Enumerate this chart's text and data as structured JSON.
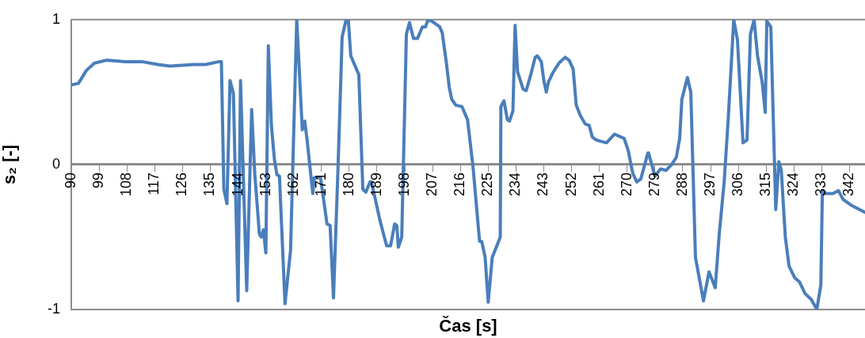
{
  "chart_data": {
    "type": "line",
    "xlabel": "Čas [s]",
    "ylabel": "s₂ [-]",
    "marker": "none",
    "xlim": [
      90,
      347
    ],
    "xticks": [
      90,
      99,
      108,
      117,
      126,
      135,
      144,
      153,
      162,
      171,
      180,
      189,
      198,
      207,
      216,
      225,
      234,
      243,
      252,
      261,
      270,
      279,
      288,
      297,
      306,
      315,
      324,
      333,
      342
    ],
    "ylim": [
      -1,
      1
    ],
    "yticks": [
      -1,
      0,
      1
    ],
    "series": [
      {
        "color": "#4a7ebb",
        "x": [
          90,
          92.3,
          94.9,
          97.5,
          101.3,
          107.7,
          112.9,
          118.0,
          121.9,
          129.6,
          133.5,
          137.8,
          138.6,
          139.4,
          140.4,
          141.4,
          142.5,
          144.0,
          144.8,
          146.8,
          148.4,
          149.4,
          150.9,
          151.5,
          152.2,
          153.0,
          153.8,
          154.8,
          155.8,
          156.6,
          157.4,
          159.2,
          161.0,
          163.0,
          164.8,
          165.6,
          166.4,
          168.2,
          168.7,
          170.7,
          172.8,
          173.8,
          174.9,
          176.4,
          177.7,
          179.0,
          179.7,
          180.5,
          183.1,
          184.4,
          185.4,
          186.7,
          187.2,
          190.0,
          192.1,
          193.4,
          194.7,
          195.4,
          195.9,
          197.0,
          198.5,
          199.5,
          200.8,
          202.1,
          202.9,
          203.7,
          204.7,
          205.5,
          206.7,
          209.3,
          210.1,
          211.4,
          212.4,
          213.2,
          214.5,
          216.5,
          218.3,
          220.1,
          222.2,
          222.9,
          224.0,
          225.0,
          226.3,
          227.8,
          228.9,
          229.1,
          230.1,
          231.2,
          231.9,
          233.0,
          233.7,
          234.5,
          236.3,
          237.3,
          238.9,
          240.2,
          240.9,
          242.2,
          243.0,
          243.8,
          244.5,
          246.1,
          247.9,
          249.9,
          251.2,
          252.5,
          253.5,
          254.8,
          256.4,
          257.7,
          258.7,
          260.0,
          261.5,
          263.3,
          265.9,
          269.0,
          270.3,
          271.8,
          273.1,
          274.4,
          276.7,
          276.9,
          279.0,
          280.8,
          282.6,
          284.4,
          285.9,
          287.0,
          287.7,
          289.5,
          290.6,
          292.1,
          294.7,
          296.5,
          298.5,
          299.8,
          301.4,
          302.7,
          304.5,
          305.7,
          307.5,
          308.8,
          309.9,
          311.1,
          312.2,
          313.7,
          314.7,
          315.2,
          316.5,
          318.1,
          319.1,
          319.9,
          321.2,
          322.4,
          324.2,
          325.8,
          327.6,
          329.6,
          331.4,
          332.7,
          333.2,
          334.5,
          336.6,
          338.4,
          339.9,
          342.5,
          347
        ],
        "values": [
          0.55,
          0.56,
          0.65,
          0.7,
          0.72,
          0.71,
          0.71,
          0.69,
          0.68,
          0.69,
          0.69,
          0.71,
          0.71,
          -0.17,
          -0.27,
          0.58,
          0.49,
          -0.94,
          0.58,
          -0.87,
          0.38,
          -0.06,
          -0.48,
          -0.5,
          -0.45,
          -0.61,
          0.82,
          0.27,
          0.03,
          -0.07,
          -0.08,
          -0.96,
          -0.59,
          1.0,
          0.24,
          0.3,
          0.16,
          -0.2,
          -0.09,
          -0.09,
          -0.41,
          -0.42,
          -0.92,
          0.0,
          0.88,
          1.0,
          1.0,
          0.75,
          0.62,
          -0.17,
          -0.19,
          -0.12,
          -0.12,
          -0.39,
          -0.56,
          -0.56,
          -0.41,
          -0.42,
          -0.57,
          -0.5,
          0.9,
          0.98,
          0.87,
          0.87,
          0.91,
          0.95,
          0.95,
          1.0,
          0.99,
          0.95,
          0.91,
          0.71,
          0.53,
          0.45,
          0.41,
          0.4,
          0.31,
          -0.02,
          -0.53,
          -0.53,
          -0.64,
          -0.95,
          -0.64,
          -0.56,
          -0.5,
          0.4,
          0.44,
          0.31,
          0.3,
          0.37,
          0.96,
          0.64,
          0.52,
          0.51,
          0.63,
          0.74,
          0.75,
          0.71,
          0.58,
          0.5,
          0.57,
          0.64,
          0.7,
          0.74,
          0.72,
          0.66,
          0.41,
          0.34,
          0.28,
          0.27,
          0.19,
          0.17,
          0.16,
          0.15,
          0.21,
          0.18,
          0.1,
          -0.06,
          -0.12,
          -0.1,
          0.08,
          0.08,
          -0.08,
          -0.03,
          -0.04,
          0.0,
          0.05,
          0.18,
          0.45,
          0.6,
          0.5,
          -0.64,
          -0.94,
          -0.74,
          -0.85,
          -0.48,
          -0.12,
          0.31,
          1.0,
          0.86,
          0.15,
          0.17,
          0.9,
          1.0,
          0.75,
          0.57,
          0.36,
          0.99,
          0.95,
          -0.31,
          0.02,
          -0.04,
          -0.5,
          -0.7,
          -0.78,
          -0.81,
          -0.89,
          -0.93,
          -1.0,
          -0.83,
          -0.18,
          -0.2,
          -0.2,
          -0.18,
          -0.24,
          -0.28,
          -0.33
        ]
      }
    ]
  }
}
